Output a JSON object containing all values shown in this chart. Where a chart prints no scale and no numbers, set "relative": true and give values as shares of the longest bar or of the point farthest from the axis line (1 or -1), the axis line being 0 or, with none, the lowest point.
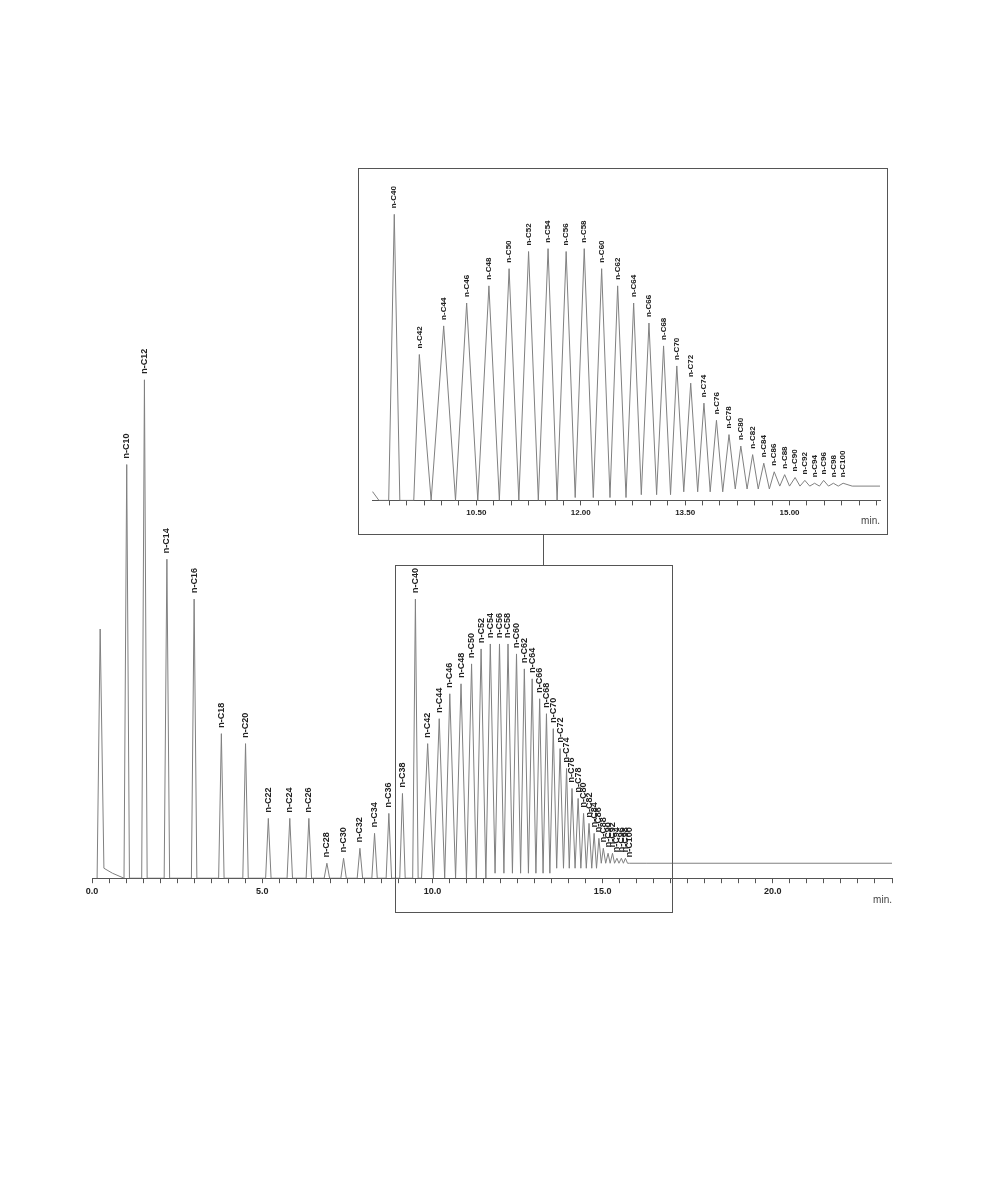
{
  "chart_data": [
    {
      "type": "line",
      "relative": true,
      "xlabel": "min.",
      "color": "#808080",
      "grid": false,
      "legend": false,
      "marker": "none",
      "xlim": [
        0,
        23.5
      ],
      "xticks": [
        {
          "value": 0,
          "label": "0.0"
        },
        {
          "value": 0.5,
          "label": null
        },
        {
          "value": 1,
          "label": null
        },
        {
          "value": 1.5,
          "label": null
        },
        {
          "value": 2,
          "label": null
        },
        {
          "value": 2.5,
          "label": null
        },
        {
          "value": 3,
          "label": null
        },
        {
          "value": 3.5,
          "label": null
        },
        {
          "value": 4,
          "label": null
        },
        {
          "value": 4.5,
          "label": null
        },
        {
          "value": 5,
          "label": "5.0"
        },
        {
          "value": 5.5,
          "label": null
        },
        {
          "value": 6,
          "label": null
        },
        {
          "value": 6.5,
          "label": null
        },
        {
          "value": 7,
          "label": null
        },
        {
          "value": 7.5,
          "label": null
        },
        {
          "value": 8,
          "label": null
        },
        {
          "value": 8.5,
          "label": null
        },
        {
          "value": 9,
          "label": null
        },
        {
          "value": 9.5,
          "label": null
        },
        {
          "value": 10,
          "label": "10.0"
        },
        {
          "value": 10.5,
          "label": null
        },
        {
          "value": 11,
          "label": null
        },
        {
          "value": 11.5,
          "label": null
        },
        {
          "value": 12,
          "label": null
        },
        {
          "value": 12.5,
          "label": null
        },
        {
          "value": 13,
          "label": null
        },
        {
          "value": 13.5,
          "label": null
        },
        {
          "value": 14,
          "label": null
        },
        {
          "value": 14.5,
          "label": null
        },
        {
          "value": 15,
          "label": "15.0"
        },
        {
          "value": 15.5,
          "label": null
        },
        {
          "value": 16,
          "label": null
        },
        {
          "value": 16.5,
          "label": null
        },
        {
          "value": 17,
          "label": null
        },
        {
          "value": 17.5,
          "label": null
        },
        {
          "value": 18,
          "label": null
        },
        {
          "value": 18.5,
          "label": null
        },
        {
          "value": 19,
          "label": null
        },
        {
          "value": 19.5,
          "label": null
        },
        {
          "value": 20,
          "label": "20.0"
        },
        {
          "value": 20.5,
          "label": null
        },
        {
          "value": 21,
          "label": null
        },
        {
          "value": 21.5,
          "label": null
        },
        {
          "value": 22,
          "label": null
        },
        {
          "value": 22.5,
          "label": null
        },
        {
          "value": 23,
          "label": null
        },
        {
          "value": 23.5,
          "label": null
        }
      ],
      "x": [
        0.15,
        0.24,
        0.35,
        0.6,
        0.94,
        1.02,
        1.1,
        1.46,
        1.54,
        1.62,
        2.12,
        2.2,
        2.28,
        2.92,
        3.0,
        3.08,
        3.72,
        3.8,
        3.88,
        4.43,
        4.51,
        4.59,
        5.1,
        5.18,
        5.26,
        5.73,
        5.81,
        5.89,
        6.29,
        6.37,
        6.45,
        6.82,
        6.9,
        6.98,
        7.31,
        7.39,
        7.47,
        7.79,
        7.87,
        7.95,
        8.22,
        8.3,
        8.38,
        8.64,
        8.72,
        8.8,
        9.04,
        9.12,
        9.2,
        9.42,
        9.5,
        9.58,
        9.68,
        9.86,
        10.03,
        10.2,
        10.36,
        10.51,
        10.68,
        10.84,
        11.0,
        11.15,
        11.29,
        11.43,
        11.57,
        11.7,
        11.84,
        11.97,
        12.1,
        12.22,
        12.35,
        12.47,
        12.59,
        12.7,
        12.82,
        12.93,
        13.04,
        13.15,
        13.25,
        13.35,
        13.45,
        13.55,
        13.65,
        13.75,
        13.85,
        13.94,
        14.02,
        14.1,
        14.19,
        14.28,
        14.36,
        14.44,
        14.52,
        14.6,
        14.68,
        14.75,
        14.82,
        14.89,
        14.96,
        15.02,
        15.09,
        15.16,
        15.22,
        15.29,
        15.35,
        15.42,
        15.48,
        15.55,
        15.61,
        15.67,
        15.73,
        15.79,
        16.3,
        23.5
      ],
      "values": [
        0,
        0.5,
        0.02,
        0.01,
        0,
        0.83,
        0,
        0,
        1.0,
        0,
        0,
        0.64,
        0,
        0,
        0.56,
        0,
        0,
        0.29,
        0,
        0,
        0.27,
        0,
        0,
        0.12,
        0,
        0,
        0.12,
        0,
        0,
        0.12,
        0,
        0,
        0.03,
        0,
        0,
        0.04,
        0,
        0,
        0.06,
        0,
        0,
        0.09,
        0,
        0,
        0.13,
        0,
        0,
        0.17,
        0,
        0,
        0.56,
        0,
        0,
        0.27,
        0,
        0.32,
        0,
        0.37,
        0,
        0.39,
        0,
        0.43,
        0,
        0.46,
        0,
        0.47,
        0.01,
        0.47,
        0.01,
        0.47,
        0.01,
        0.45,
        0.01,
        0.42,
        0.01,
        0.4,
        0.01,
        0.36,
        0.01,
        0.33,
        0.01,
        0.3,
        0.02,
        0.26,
        0.02,
        0.22,
        0.02,
        0.18,
        0.02,
        0.16,
        0.02,
        0.13,
        0.02,
        0.11,
        0.02,
        0.09,
        0.02,
        0.08,
        0.03,
        0.06,
        0.03,
        0.05,
        0.03,
        0.05,
        0.03,
        0.04,
        0.03,
        0.04,
        0.03,
        0.04,
        0.03,
        0.03,
        0.03,
        0.03
      ],
      "annotations": [
        {
          "text": "n-C10",
          "x": 1.02,
          "y": 0.83
        },
        {
          "text": "n-C12",
          "x": 1.54,
          "y": 1.0
        },
        {
          "text": "n-C14",
          "x": 2.2,
          "y": 0.64
        },
        {
          "text": "n-C16",
          "x": 3.0,
          "y": 0.56
        },
        {
          "text": "n-C18",
          "x": 3.8,
          "y": 0.29
        },
        {
          "text": "n-C20",
          "x": 4.51,
          "y": 0.27
        },
        {
          "text": "n-C22",
          "x": 5.18,
          "y": 0.12
        },
        {
          "text": "n-C24",
          "x": 5.81,
          "y": 0.12
        },
        {
          "text": "n-C26",
          "x": 6.37,
          "y": 0.12
        },
        {
          "text": "n-C28",
          "x": 6.9,
          "y": 0.03
        },
        {
          "text": "n-C30",
          "x": 7.39,
          "y": 0.04
        },
        {
          "text": "n-C32",
          "x": 7.87,
          "y": 0.06
        },
        {
          "text": "n-C34",
          "x": 8.3,
          "y": 0.09
        },
        {
          "text": "n-C36",
          "x": 8.72,
          "y": 0.13
        },
        {
          "text": "n-C38",
          "x": 9.12,
          "y": 0.17
        },
        {
          "text": "n-C40",
          "x": 9.5,
          "y": 0.56
        },
        {
          "text": "n-C42",
          "x": 9.86,
          "y": 0.27
        },
        {
          "text": "n-C44",
          "x": 10.2,
          "y": 0.32
        },
        {
          "text": "n-C46",
          "x": 10.51,
          "y": 0.37
        },
        {
          "text": "n-C48",
          "x": 10.84,
          "y": 0.39
        },
        {
          "text": "n-C50",
          "x": 11.15,
          "y": 0.43
        },
        {
          "text": "n-C52",
          "x": 11.43,
          "y": 0.46
        },
        {
          "text": "n-C54",
          "x": 11.7,
          "y": 0.47
        },
        {
          "text": "n-C56",
          "x": 11.97,
          "y": 0.47
        },
        {
          "text": "n-C58",
          "x": 12.22,
          "y": 0.47
        },
        {
          "text": "n-C60",
          "x": 12.47,
          "y": 0.45
        },
        {
          "text": "n-C62",
          "x": 12.7,
          "y": 0.42
        },
        {
          "text": "n-C64",
          "x": 12.93,
          "y": 0.4
        },
        {
          "text": "n-C66",
          "x": 13.15,
          "y": 0.36
        },
        {
          "text": "n-C68",
          "x": 13.35,
          "y": 0.33
        },
        {
          "text": "n-C70",
          "x": 13.55,
          "y": 0.3
        },
        {
          "text": "n-C72",
          "x": 13.75,
          "y": 0.26
        },
        {
          "text": "n-C74",
          "x": 13.94,
          "y": 0.22
        },
        {
          "text": "n-C76",
          "x": 14.1,
          "y": 0.18
        },
        {
          "text": "n-C78",
          "x": 14.28,
          "y": 0.16
        },
        {
          "text": "n-C80",
          "x": 14.44,
          "y": 0.13
        },
        {
          "text": "n-C82",
          "x": 14.6,
          "y": 0.11
        },
        {
          "text": "n-C84",
          "x": 14.75,
          "y": 0.09
        },
        {
          "text": "n-C86",
          "x": 14.89,
          "y": 0.08
        },
        {
          "text": "n-C88",
          "x": 15.02,
          "y": 0.06
        },
        {
          "text": "n-C90",
          "x": 15.16,
          "y": 0.05
        },
        {
          "text": "n-C92",
          "x": 15.29,
          "y": 0.05
        },
        {
          "text": "n-C94",
          "x": 15.42,
          "y": 0.04
        },
        {
          "text": "n-C96",
          "x": 15.55,
          "y": 0.04
        },
        {
          "text": "n-C98",
          "x": 15.67,
          "y": 0.04
        },
        {
          "text": "n-C100",
          "x": 15.79,
          "y": 0.03
        }
      ]
    },
    {
      "type": "line",
      "relative": true,
      "xlabel": "min.",
      "color": "#808080",
      "grid": false,
      "legend": false,
      "marker": "none",
      "xlim": [
        9.0,
        16.3
      ],
      "xticks": [
        {
          "value": 9.25,
          "label": null
        },
        {
          "value": 9.5,
          "label": null
        },
        {
          "value": 9.75,
          "label": null
        },
        {
          "value": 10,
          "label": null
        },
        {
          "value": 10.25,
          "label": null
        },
        {
          "value": 10.5,
          "label": "10.50"
        },
        {
          "value": 10.75,
          "label": null
        },
        {
          "value": 11,
          "label": null
        },
        {
          "value": 11.25,
          "label": null
        },
        {
          "value": 11.5,
          "label": null
        },
        {
          "value": 11.75,
          "label": null
        },
        {
          "value": 12,
          "label": "12.00"
        },
        {
          "value": 12.25,
          "label": null
        },
        {
          "value": 12.5,
          "label": null
        },
        {
          "value": 12.75,
          "label": null
        },
        {
          "value": 13,
          "label": null
        },
        {
          "value": 13.25,
          "label": null
        },
        {
          "value": 13.5,
          "label": "13.50"
        },
        {
          "value": 13.75,
          "label": null
        },
        {
          "value": 14,
          "label": null
        },
        {
          "value": 14.25,
          "label": null
        },
        {
          "value": 14.5,
          "label": null
        },
        {
          "value": 14.75,
          "label": null
        },
        {
          "value": 15,
          "label": "15.00"
        },
        {
          "value": 15.25,
          "label": null
        },
        {
          "value": 15.5,
          "label": null
        },
        {
          "value": 15.75,
          "label": null
        },
        {
          "value": 16,
          "label": null
        },
        {
          "value": 16.25,
          "label": null
        }
      ],
      "x": [
        9.01,
        9.1,
        9.24,
        9.32,
        9.4,
        9.6,
        9.68,
        9.85,
        10.03,
        10.2,
        10.36,
        10.52,
        10.68,
        10.83,
        10.97,
        11.11,
        11.25,
        11.39,
        11.53,
        11.66,
        11.79,
        11.92,
        12.05,
        12.18,
        12.3,
        12.42,
        12.53,
        12.65,
        12.76,
        12.87,
        12.98,
        13.09,
        13.19,
        13.29,
        13.38,
        13.48,
        13.58,
        13.68,
        13.77,
        13.86,
        13.95,
        14.04,
        14.13,
        14.22,
        14.3,
        14.39,
        14.47,
        14.55,
        14.63,
        14.71,
        14.78,
        14.86,
        14.93,
        15.0,
        15.08,
        15.15,
        15.22,
        15.29,
        15.36,
        15.43,
        15.49,
        15.56,
        15.63,
        15.7,
        15.77,
        15.9,
        16.3
      ],
      "values": [
        0.03,
        0,
        0,
        1.0,
        0,
        0,
        0.51,
        0,
        0.61,
        0,
        0.69,
        0,
        0.75,
        0,
        0.81,
        0,
        0.87,
        0,
        0.88,
        0,
        0.87,
        0.01,
        0.88,
        0.01,
        0.81,
        0.01,
        0.75,
        0.01,
        0.69,
        0.02,
        0.62,
        0.02,
        0.54,
        0.02,
        0.47,
        0.03,
        0.41,
        0.03,
        0.34,
        0.03,
        0.28,
        0.03,
        0.23,
        0.04,
        0.19,
        0.04,
        0.16,
        0.04,
        0.13,
        0.04,
        0.1,
        0.05,
        0.09,
        0.05,
        0.08,
        0.05,
        0.07,
        0.05,
        0.06,
        0.05,
        0.07,
        0.05,
        0.06,
        0.05,
        0.06,
        0.05,
        0.05
      ],
      "annotations": [
        {
          "text": "n-C40",
          "x": 9.32,
          "y": 1.0
        },
        {
          "text": "n-C42",
          "x": 9.68,
          "y": 0.51
        },
        {
          "text": "n-C44",
          "x": 10.03,
          "y": 0.61
        },
        {
          "text": "n-C46",
          "x": 10.36,
          "y": 0.69
        },
        {
          "text": "n-C48",
          "x": 10.68,
          "y": 0.75
        },
        {
          "text": "n-C50",
          "x": 10.97,
          "y": 0.81
        },
        {
          "text": "n-C52",
          "x": 11.25,
          "y": 0.87
        },
        {
          "text": "n-C54",
          "x": 11.53,
          "y": 0.88
        },
        {
          "text": "n-C56",
          "x": 11.79,
          "y": 0.87
        },
        {
          "text": "n-C58",
          "x": 12.05,
          "y": 0.88
        },
        {
          "text": "n-C60",
          "x": 12.3,
          "y": 0.81
        },
        {
          "text": "n-C62",
          "x": 12.53,
          "y": 0.75
        },
        {
          "text": "n-C64",
          "x": 12.76,
          "y": 0.69
        },
        {
          "text": "n-C66",
          "x": 12.98,
          "y": 0.62
        },
        {
          "text": "n-C68",
          "x": 13.19,
          "y": 0.54
        },
        {
          "text": "n-C70",
          "x": 13.38,
          "y": 0.47
        },
        {
          "text": "n-C72",
          "x": 13.58,
          "y": 0.41
        },
        {
          "text": "n-C74",
          "x": 13.77,
          "y": 0.34
        },
        {
          "text": "n-C76",
          "x": 13.95,
          "y": 0.28
        },
        {
          "text": "n-C78",
          "x": 14.13,
          "y": 0.23
        },
        {
          "text": "n-C80",
          "x": 14.3,
          "y": 0.19
        },
        {
          "text": "n-C82",
          "x": 14.47,
          "y": 0.16
        },
        {
          "text": "n-C84",
          "x": 14.63,
          "y": 0.13
        },
        {
          "text": "n-C86",
          "x": 14.78,
          "y": 0.1
        },
        {
          "text": "n-C88",
          "x": 14.93,
          "y": 0.09
        },
        {
          "text": "n-C90",
          "x": 15.08,
          "y": 0.08
        },
        {
          "text": "n-C92",
          "x": 15.22,
          "y": 0.07
        },
        {
          "text": "n-C94",
          "x": 15.36,
          "y": 0.06
        },
        {
          "text": "n-C96",
          "x": 15.49,
          "y": 0.07
        },
        {
          "text": "n-C98",
          "x": 15.63,
          "y": 0.06
        },
        {
          "text": "n-C100",
          "x": 15.77,
          "y": 0.06
        }
      ]
    }
  ]
}
